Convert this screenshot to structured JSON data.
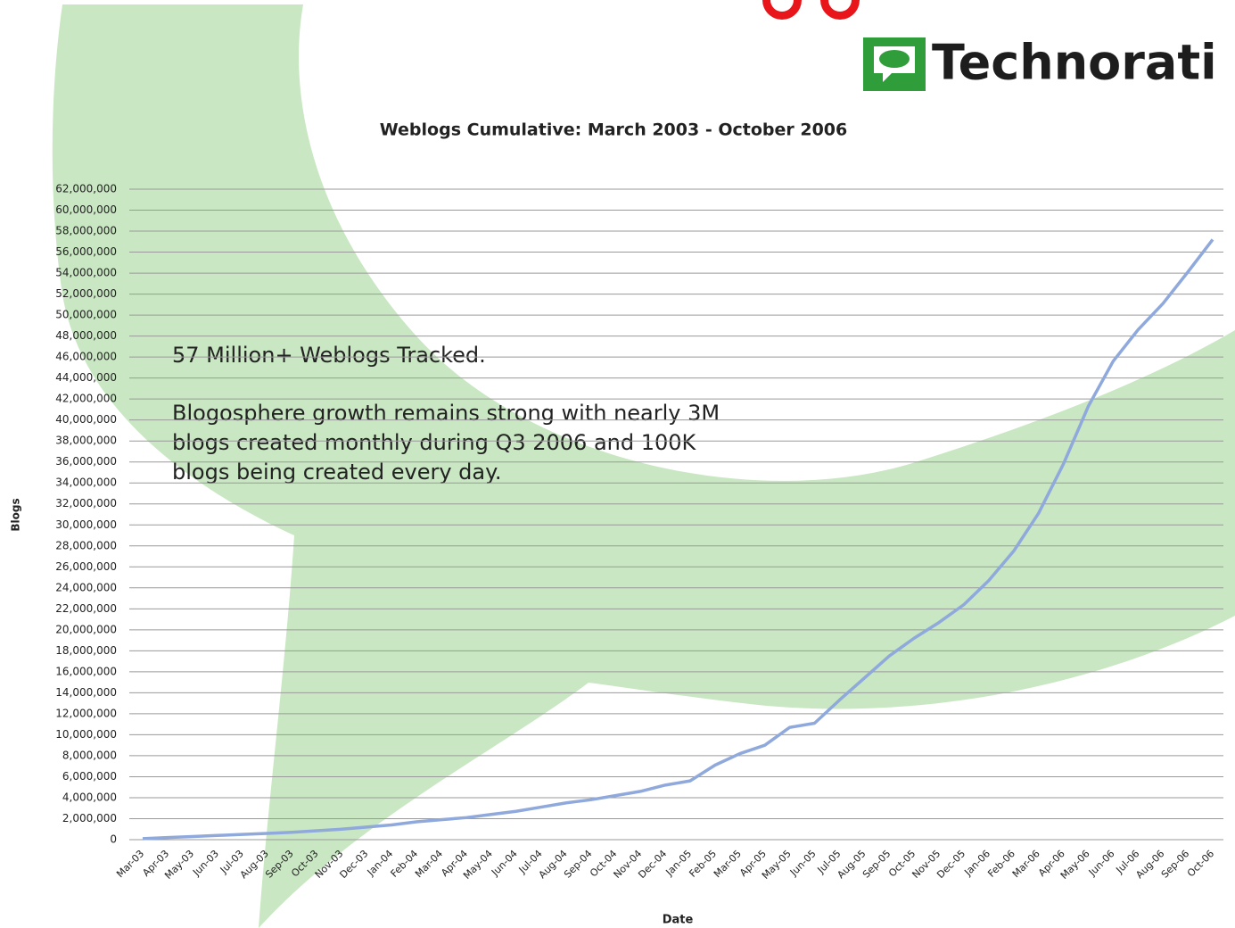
{
  "chart_data": {
    "type": "line",
    "brand": "Technorati",
    "title": "Weblogs Cumulative: March 2003 - October 2006",
    "y_label": "Blogs",
    "x_label": "Date",
    "annotations": [
      "57 Million+ Weblogs Tracked.",
      "Blogosphere growth remains strong with nearly 3M",
      "blogs created monthly during Q3 2006 and 100K",
      "blogs being created every day."
    ],
    "categories": [
      "Mar-03",
      "Apr-03",
      "May-03",
      "Jun-03",
      "Jul-03",
      "Aug-03",
      "Sep-03",
      "Oct-03",
      "Nov-03",
      "Dec-03",
      "Jan-04",
      "Feb-04",
      "Mar-04",
      "Apr-04",
      "May-04",
      "Jun-04",
      "Jul-04",
      "Aug-04",
      "Sep-04",
      "Oct-04",
      "Nov-04",
      "Dec-04",
      "Jan-05",
      "Feb-05",
      "Mar-05",
      "Apr-05",
      "May-05",
      "Jun-05",
      "Jul-05",
      "Aug-05",
      "Sep-05",
      "Oct-05",
      "Nov-05",
      "Dec-05",
      "Jan-06",
      "Feb-06",
      "Mar-06",
      "Apr-06",
      "May-06",
      "Jun-06",
      "Jul-06",
      "Aug-06",
      "Sep-06",
      "Oct-06"
    ],
    "series": [
      {
        "name": "Blogs",
        "color": "#8fa9dc",
        "values": [
          100000,
          200000,
          300000,
          400000,
          500000,
          600000,
          700000,
          850000,
          1000000,
          1200000,
          1400000,
          1700000,
          1900000,
          2100000,
          2400000,
          2700000,
          3100000,
          3500000,
          3800000,
          4200000,
          4600000,
          5200000,
          5600000,
          7100000,
          8200000,
          9000000,
          10700000,
          11100000,
          13300000,
          15400000,
          17500000,
          19200000,
          20700000,
          22400000,
          24700000,
          27500000,
          31100000,
          35800000,
          41300000,
          45600000,
          48600000,
          51100000,
          54100000,
          57200000
        ]
      }
    ],
    "ylim": [
      0,
      62000000
    ],
    "yticks": [
      0,
      {
        "value": 2000000,
        "label": "2,000,000"
      },
      {
        "value": 4000000,
        "label": "4,000,000"
      },
      {
        "value": 6000000,
        "label": "6,000,000"
      },
      {
        "value": 8000000,
        "label": "8,000,000"
      },
      {
        "value": 10000000,
        "label": "10,000,000"
      },
      {
        "value": 12000000,
        "label": "12,000,000"
      },
      {
        "value": 14000000,
        "label": "14,000,000"
      },
      {
        "value": 16000000,
        "label": "16,000,000"
      },
      {
        "value": 18000000,
        "label": "18,000,000"
      },
      {
        "value": 20000000,
        "label": "20,000,000"
      },
      {
        "value": 22000000,
        "label": "22,000,000"
      },
      {
        "value": 24000000,
        "label": "24,000,000"
      },
      {
        "value": 26000000,
        "label": "26,000,000"
      },
      {
        "value": 28000000,
        "label": "28,000,000"
      },
      {
        "value": 30000000,
        "label": "30,000,000"
      },
      {
        "value": 32000000,
        "label": "32,000,000"
      },
      {
        "value": 34000000,
        "label": "34,000,000"
      },
      {
        "value": 36000000,
        "label": "36,000,000"
      },
      {
        "value": 38000000,
        "label": "38,000,000"
      },
      {
        "value": 40000000,
        "label": "40,000,000"
      },
      {
        "value": 42000000,
        "label": "42,000,000"
      },
      {
        "value": 44000000,
        "label": "44,000,000"
      },
      {
        "value": 46000000,
        "label": "46,000,000"
      },
      {
        "value": 48000000,
        "label": "48,000,000"
      },
      {
        "value": 50000000,
        "label": "50,000,000"
      },
      {
        "value": 52000000,
        "label": "52,000,000"
      },
      {
        "value": 54000000,
        "label": "54,000,000"
      },
      {
        "value": 56000000,
        "label": "56,000,000"
      },
      {
        "value": 58000000,
        "label": "58,000,000"
      },
      {
        "value": 60000000,
        "label": "60,000,000"
      },
      {
        "value": 62000000,
        "label": "62,000,000"
      }
    ],
    "grid": true
  }
}
